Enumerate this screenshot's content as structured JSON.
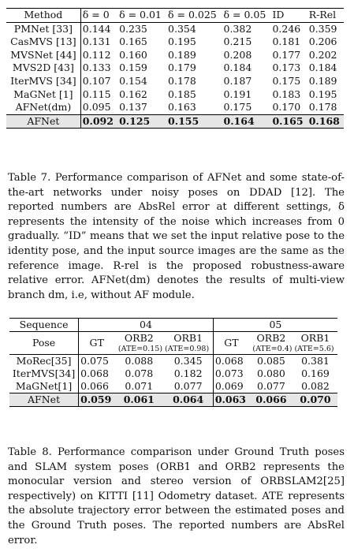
{
  "table7": {
    "header": [
      "Method",
      "δ = 0",
      "δ = 0.01",
      "δ = 0.025",
      "δ = 0.05",
      "ID",
      "R-Rel"
    ],
    "rows": [
      {
        "method": "PMNet [33]",
        "values": [
          "0.144",
          "0.235",
          "0.354",
          "0.382",
          "0.246",
          "0.359"
        ]
      },
      {
        "method": "CasMVS [13]",
        "values": [
          "0.131",
          "0.165",
          "0.195",
          "0.215",
          "0.181",
          "0.206"
        ]
      },
      {
        "method": "MVSNet [44]",
        "values": [
          "0.112",
          "0.160",
          "0.189",
          "0.208",
          "0.177",
          "0.202"
        ]
      },
      {
        "method": "MVS2D [43]",
        "values": [
          "0.133",
          "0.159",
          "0.179",
          "0.184",
          "0.173",
          "0.184"
        ]
      },
      {
        "method": "IterMVS [34]",
        "values": [
          "0.107",
          "0.154",
          "0.178",
          "0.187",
          "0.175",
          "0.189"
        ]
      },
      {
        "method": "MaGNet [1]",
        "values": [
          "0.115",
          "0.162",
          "0.185",
          "0.191",
          "0.183",
          "0.195"
        ]
      },
      {
        "method": "AFNet(dm)",
        "values": [
          "0.095",
          "0.137",
          "0.163",
          "0.175",
          "0.170",
          "0.178"
        ]
      },
      {
        "method": "AFNet",
        "values": [
          "0.092",
          "0.125",
          "0.155",
          "0.164",
          "0.165",
          "0.168"
        ]
      }
    ],
    "caption": "Table 7. Performance comparison of AFNet and some state-of-the-art networks under noisy poses on DDAD [12]. The reported numbers are AbsRel error at different settings, δ represents the intensity of the noise which increases from 0 gradually. “ID” means that we set the input relative pose to the identity pose, and the input source images are the same as the reference image. R-rel is the proposed robustness-aware relative error. AFNet(dm) denotes the results of multi-view branch dm, i.e, without AF module."
  },
  "table8": {
    "sequence_label": "Sequence",
    "pose_label": "Pose",
    "seq_a": "04",
    "seq_b": "05",
    "pose_cols": [
      "GT",
      "ORB2",
      "ORB1",
      "GT",
      "ORB2",
      "ORB1"
    ],
    "ate_a": "(ATE=0.15) (ATE=0.98)",
    "ate_b": "(ATE=0.4) (ATE=5.6)",
    "rows": [
      {
        "method": "MoRec[35]",
        "values": [
          "0.075",
          "0.088",
          "0.345",
          "0.068",
          "0.085",
          "0.381"
        ]
      },
      {
        "method": "IterMVS[34]",
        "values": [
          "0.068",
          "0.078",
          "0.182",
          "0.073",
          "0.080",
          "0.169"
        ]
      },
      {
        "method": "MaGNet[1]",
        "values": [
          "0.066",
          "0.071",
          "0.077",
          "0.069",
          "0.077",
          "0.082"
        ]
      },
      {
        "method": "AFNet",
        "values": [
          "0.059",
          "0.061",
          "0.064",
          "0.063",
          "0.066",
          "0.070"
        ]
      }
    ],
    "caption": "Table 8. Performance comparison under Ground Truth poses and SLAM system poses (ORB1 and ORB2 represents the monocular version and stereo version of ORBSLAM2[25] respectively) on KITTI [11] Odometry dataset. ATE represents the absolute trajectory error between the estimated poses and the Ground Truth poses. The reported numbers are AbsRel error."
  }
}
